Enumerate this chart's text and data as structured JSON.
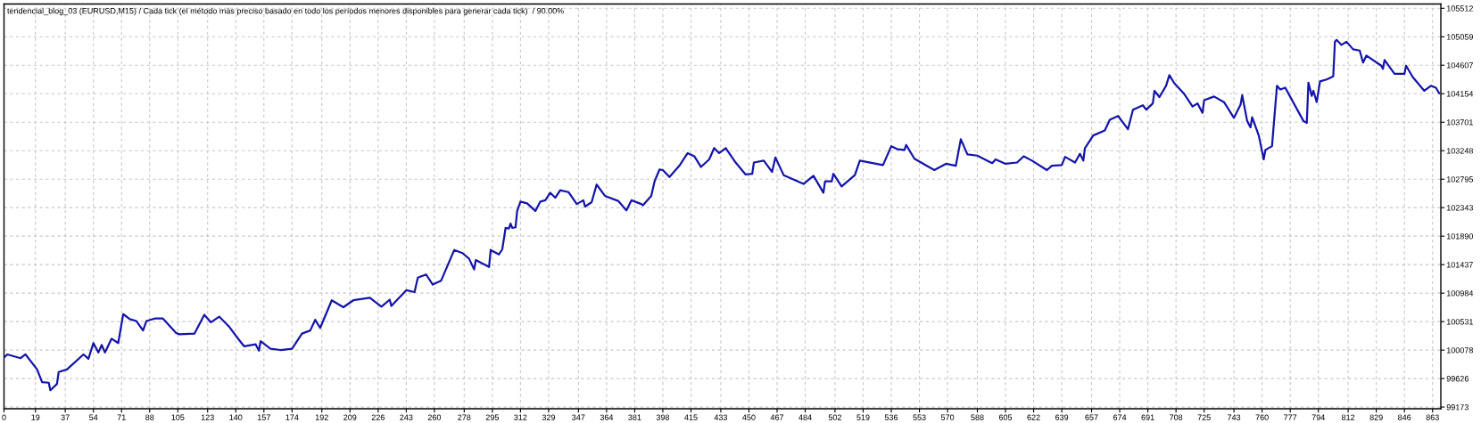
{
  "chart_data": {
    "type": "line",
    "title": "tendencial_blog_03 (EURUSD,M15) / Cada tick (el método más preciso basado en todo los períodos menores disponibles para generar cada tick)  / 90.00%",
    "x": [
      0,
      2,
      10,
      13,
      20,
      23,
      27,
      28,
      32,
      33,
      38,
      48,
      51,
      54,
      57,
      59,
      61,
      65,
      69,
      72,
      76,
      80,
      84,
      86,
      91,
      96,
      104,
      106,
      115,
      121,
      125,
      130,
      136,
      142,
      145,
      152,
      154,
      155,
      161,
      167,
      174,
      180,
      185,
      188,
      191,
      198,
      205,
      211,
      221,
      228,
      233,
      234,
      243,
      248,
      250,
      255,
      259,
      264,
      272,
      277,
      281,
      284,
      285,
      293,
      294,
      299,
      301,
      303,
      305,
      306,
      307,
      309,
      310,
      312,
      316,
      321,
      324,
      327,
      330,
      333,
      336,
      341,
      346,
      350,
      351,
      355,
      358,
      363,
      371,
      376,
      379,
      385,
      386,
      391,
      393,
      396,
      398,
      402,
      408,
      413,
      417,
      421,
      426,
      429,
      432,
      436,
      442,
      448,
      452,
      453,
      459,
      464,
      466,
      471,
      483,
      489,
      495,
      496,
      500,
      501,
      506,
      514,
      517,
      531,
      536,
      540,
      544,
      545,
      550,
      562,
      569,
      575,
      578,
      582,
      588,
      594,
      597,
      599,
      605,
      612,
      616,
      621,
      630,
      633,
      639,
      641,
      647,
      650,
      652,
      653,
      658,
      665,
      668,
      673,
      679,
      682,
      688,
      690,
      694,
      695,
      698,
      702,
      704,
      707,
      713,
      718,
      721,
      724,
      725,
      731,
      737,
      743,
      747,
      748,
      751,
      753,
      754,
      758,
      761,
      762,
      766,
      769,
      771,
      774,
      785,
      787,
      788,
      790,
      791,
      793,
      795,
      799,
      803,
      804,
      805,
      808,
      811,
      815,
      819,
      821,
      823,
      832,
      833,
      834,
      840,
      846,
      847,
      851,
      858,
      862,
      865,
      867
    ],
    "series": [
      {
        "color": "#1414aa",
        "values": [
          99960,
          100010,
          99950,
          100010,
          99770,
          99570,
          99560,
          99440,
          99540,
          99730,
          99770,
          100010,
          99940,
          100190,
          100040,
          100160,
          100040,
          100260,
          100190,
          100650,
          100570,
          100540,
          100390,
          100540,
          100580,
          100580,
          100350,
          100330,
          100340,
          100640,
          100520,
          100610,
          100450,
          100240,
          100140,
          100170,
          100070,
          100220,
          100100,
          100080,
          100100,
          100340,
          100390,
          100560,
          100430,
          100870,
          100760,
          100870,
          100910,
          100770,
          100880,
          100780,
          101030,
          101000,
          101230,
          101280,
          101120,
          101180,
          101670,
          101620,
          101530,
          101360,
          101510,
          101400,
          101670,
          101600,
          101680,
          102020,
          102010,
          102090,
          102020,
          102030,
          102290,
          102440,
          102410,
          102290,
          102440,
          102460,
          102580,
          102500,
          102620,
          102590,
          102400,
          102460,
          102360,
          102430,
          102710,
          102530,
          102450,
          102300,
          102460,
          102400,
          102380,
          102530,
          102760,
          102950,
          102940,
          102830,
          103010,
          103210,
          103160,
          102990,
          103110,
          103290,
          103210,
          103290,
          103060,
          102870,
          102880,
          103060,
          103090,
          102910,
          103140,
          102860,
          102720,
          102850,
          102580,
          102760,
          102760,
          102880,
          102680,
          102860,
          103090,
          103020,
          103320,
          103270,
          103260,
          103340,
          103120,
          102940,
          103040,
          103010,
          103430,
          103190,
          103170,
          103090,
          103050,
          103110,
          103040,
          103060,
          103160,
          103090,
          102940,
          103010,
          103020,
          103150,
          103060,
          103200,
          103090,
          103290,
          103490,
          103570,
          103740,
          103800,
          103590,
          103900,
          103970,
          103900,
          104000,
          104200,
          104100,
          104280,
          104450,
          104320,
          104150,
          103950,
          104000,
          103850,
          104050,
          104110,
          104020,
          103770,
          103980,
          104130,
          103720,
          103620,
          103780,
          103490,
          103110,
          103260,
          103320,
          104280,
          104220,
          104250,
          103720,
          103690,
          104330,
          104120,
          104200,
          104020,
          104350,
          104380,
          104430,
          104980,
          105010,
          104930,
          104980,
          104860,
          104840,
          104650,
          104760,
          104600,
          104550,
          104690,
          104470,
          104470,
          104600,
          104420,
          104200,
          104280,
          104250,
          104160
        ]
      }
    ],
    "line_style": "solid",
    "xlim": [
      0,
      868
    ],
    "xticks": [
      0,
      19,
      37,
      54,
      71,
      88,
      105,
      123,
      140,
      157,
      174,
      192,
      209,
      226,
      243,
      260,
      278,
      295,
      312,
      329,
      347,
      364,
      381,
      398,
      415,
      433,
      450,
      467,
      484,
      502,
      519,
      536,
      553,
      570,
      588,
      605,
      622,
      639,
      657,
      674,
      691,
      708,
      725,
      743,
      760,
      777,
      794,
      812,
      829,
      846,
      863
    ],
    "ylim": [
      99146,
      105580
    ],
    "yticks": [
      99173,
      99626,
      100078,
      100531,
      100984,
      101437,
      101890,
      102343,
      102795,
      103248,
      103701,
      104154,
      104607,
      105059,
      105512
    ],
    "grid": true
  }
}
